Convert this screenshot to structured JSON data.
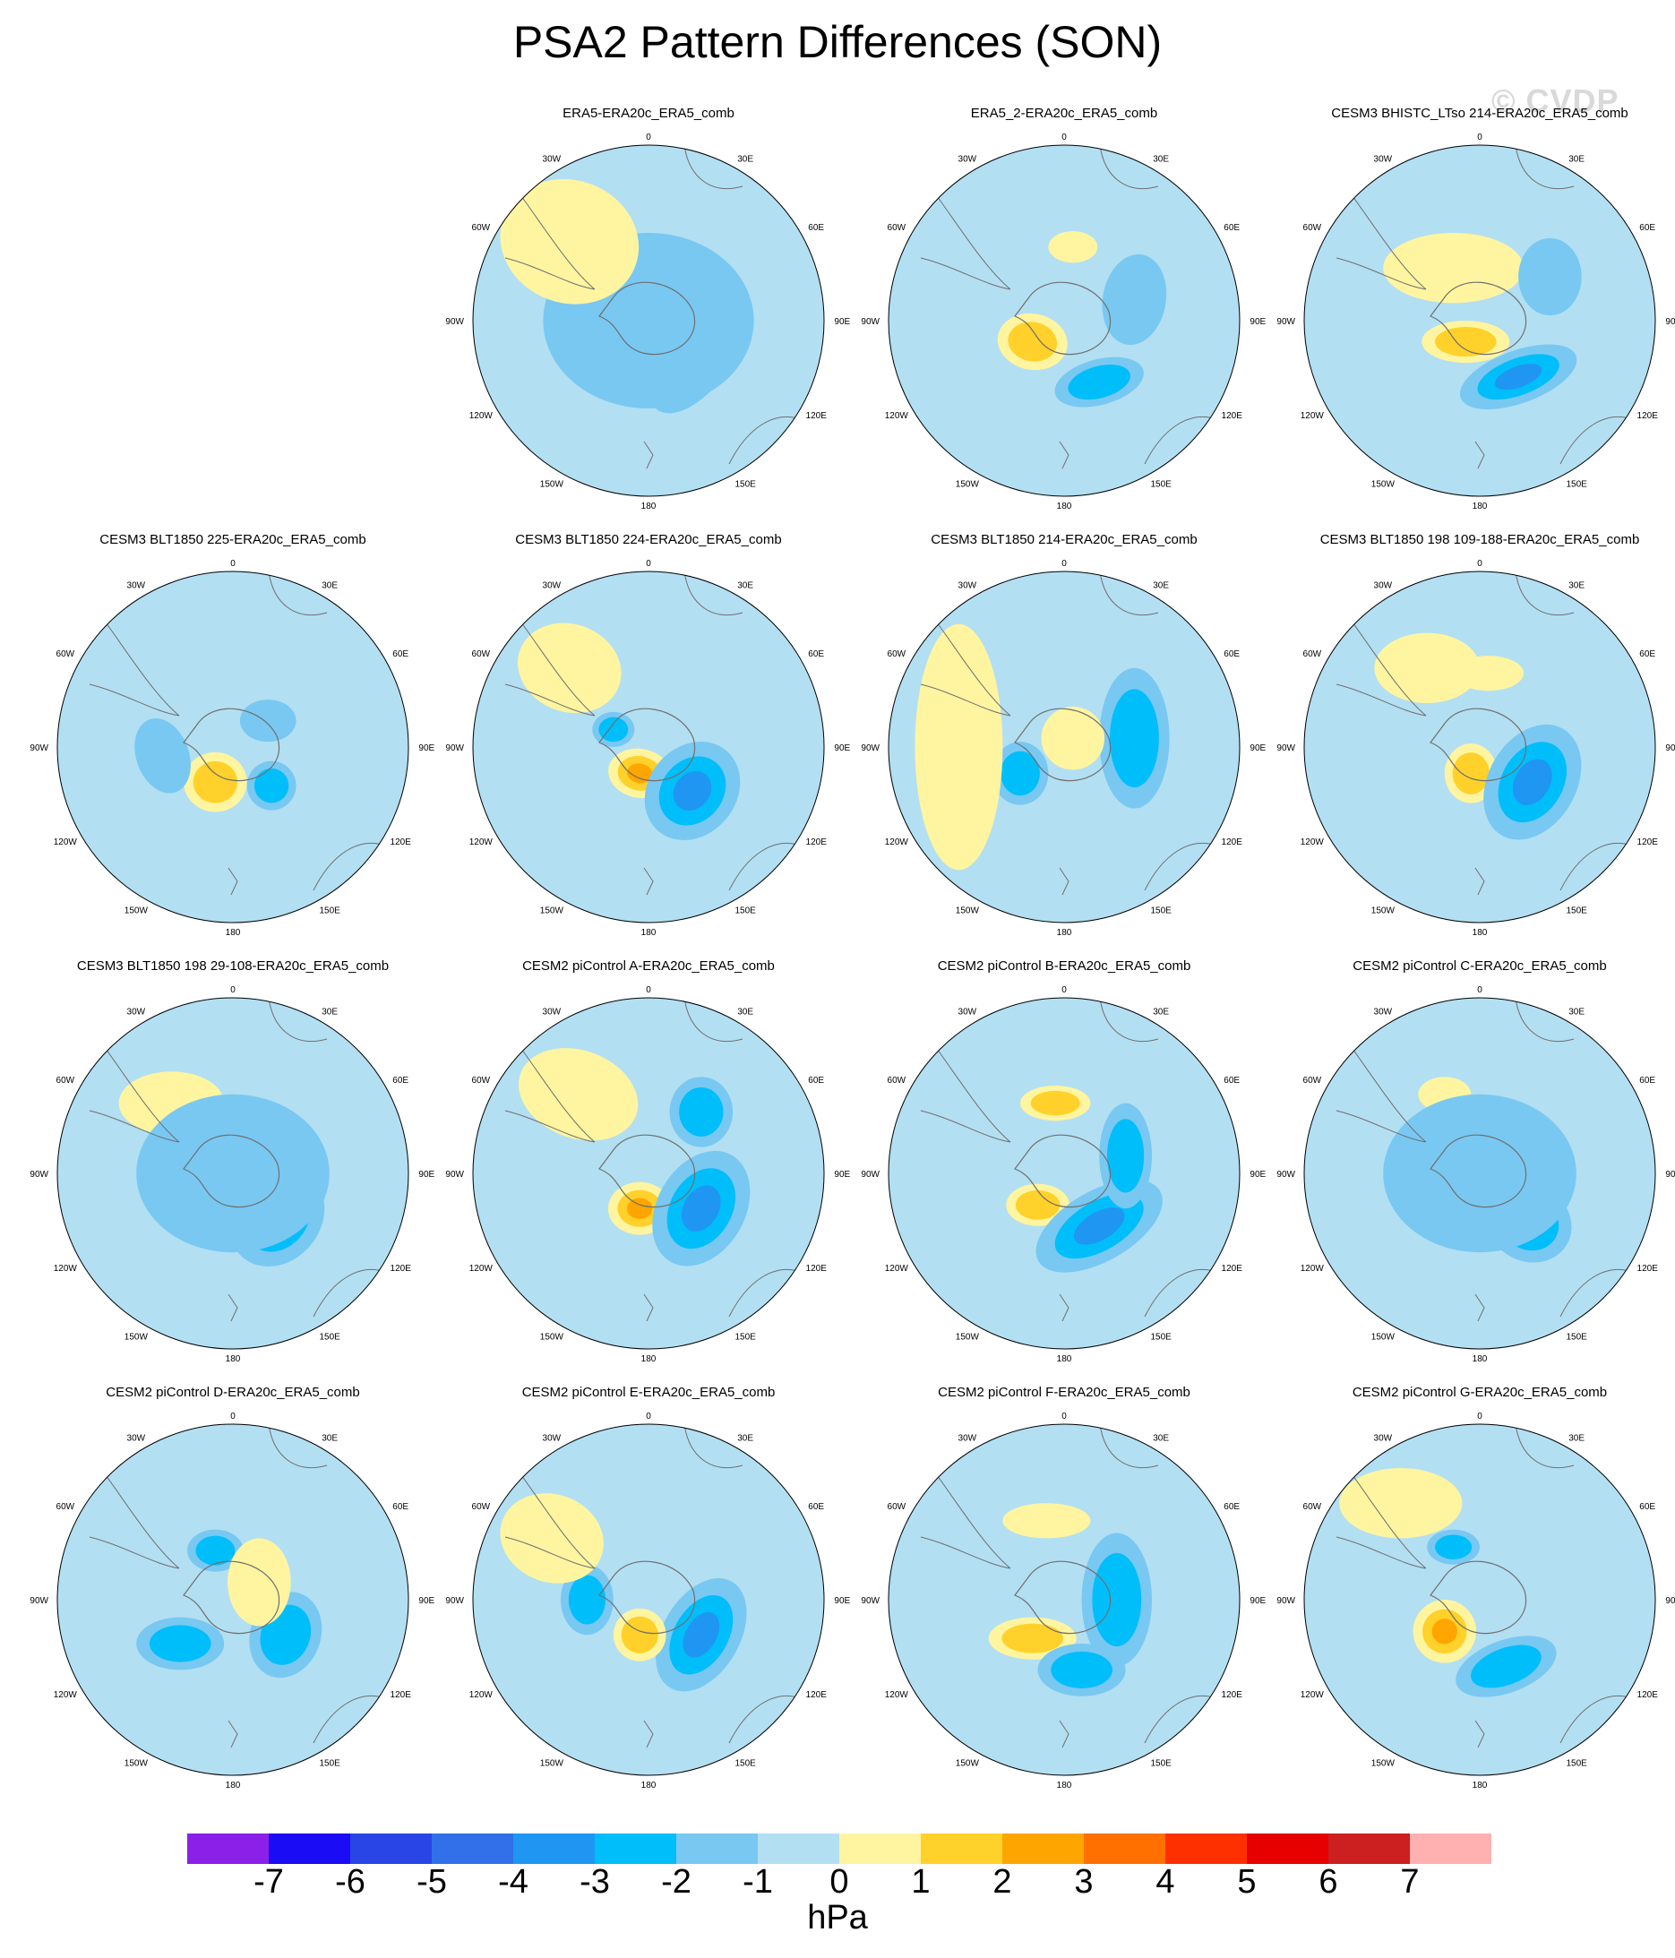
{
  "title": "PSA2 Pattern Differences (SON)",
  "watermark": "© CVDP",
  "colors": {
    "background_field": "#b3dff2",
    "coast": "#6f6f6f"
  },
  "longitude_labels": [
    "0",
    "30E",
    "60E",
    "90E",
    "120E",
    "150E",
    "180",
    "150W",
    "120W",
    "90W",
    "60W",
    "30W"
  ],
  "panels": [
    {
      "title": "ERA5-ERA20c_ERA5_comb"
    },
    {
      "title": "ERA5_2-ERA20c_ERA5_comb"
    },
    {
      "title": "CESM3 BHISTC_LTso 214-ERA20c_ERA5_comb"
    },
    {
      "title": "CESM3 BLT1850 225-ERA20c_ERA5_comb"
    },
    {
      "title": "CESM3 BLT1850 224-ERA20c_ERA5_comb"
    },
    {
      "title": "CESM3 BLT1850 214-ERA20c_ERA5_comb"
    },
    {
      "title": "CESM3 BLT1850 198 109-188-ERA20c_ERA5_comb"
    },
    {
      "title": "CESM3 BLT1850 198 29-108-ERA20c_ERA5_comb"
    },
    {
      "title": "CESM2 piControl A-ERA20c_ERA5_comb"
    },
    {
      "title": "CESM2 piControl B-ERA20c_ERA5_comb"
    },
    {
      "title": "CESM2 piControl C-ERA20c_ERA5_comb"
    },
    {
      "title": "CESM2 piControl D-ERA20c_ERA5_comb"
    },
    {
      "title": "CESM2 piControl E-ERA20c_ERA5_comb"
    },
    {
      "title": "CESM2 piControl F-ERA20c_ERA5_comb"
    },
    {
      "title": "CESM2 piControl G-ERA20c_ERA5_comb"
    }
  ],
  "colorbar": {
    "units": "hPa",
    "tick_labels": [
      "-7",
      "-6",
      "-5",
      "-4",
      "-3",
      "-2",
      "-1",
      "0",
      "1",
      "2",
      "3",
      "4",
      "5",
      "6",
      "7"
    ],
    "colors": [
      "#8b20e8",
      "#1a0cf5",
      "#2a45e6",
      "#3170e8",
      "#1f96f1",
      "#00befa",
      "#78c8f2",
      "#b3dff2",
      "#fff5a0",
      "#ffd12a",
      "#ffa500",
      "#ff7000",
      "#ff3000",
      "#e60000",
      "#cc1f1f",
      "#ffb0b0"
    ]
  }
}
